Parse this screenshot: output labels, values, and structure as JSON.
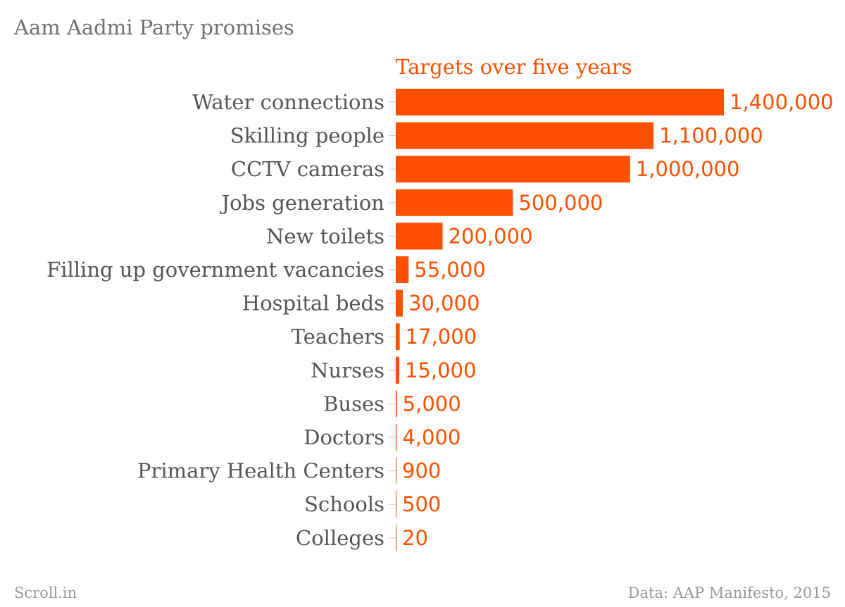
{
  "chart_data": {
    "type": "bar",
    "orientation": "horizontal",
    "title": "Aam Aadmi Party promises",
    "series": [
      {
        "name": "Targets over five years",
        "color": "#fe5000",
        "values": [
          1400000,
          1100000,
          1000000,
          500000,
          200000,
          55000,
          30000,
          17000,
          15000,
          5000,
          4000,
          900,
          500,
          20
        ]
      }
    ],
    "categories": [
      "Water connections",
      "Skilling people",
      "CCTV cameras",
      "Jobs generation",
      "New toilets",
      "Filling up government vacancies",
      "Hospital beds",
      "Teachers",
      "Nurses",
      "Buses",
      "Doctors",
      "Primary Health Centers",
      "Schools",
      "Colleges"
    ],
    "value_labels": [
      "1,400,000",
      "1,100,000",
      "1,000,000",
      "500,000",
      "200,000",
      "55,000",
      "30,000",
      "17,000",
      "15,000",
      "5,000",
      "4,000",
      "900",
      "500",
      "20"
    ],
    "xlim": [
      0,
      1400000
    ],
    "grid": false,
    "colors": {
      "bar": "#fe5000",
      "label_text": "#555555",
      "value_text": "#fe5000",
      "tick": "#cccccc"
    }
  },
  "footer": {
    "source_brand": "Scroll.in",
    "source_note": "Data: AAP Manifesto, 2015"
  }
}
